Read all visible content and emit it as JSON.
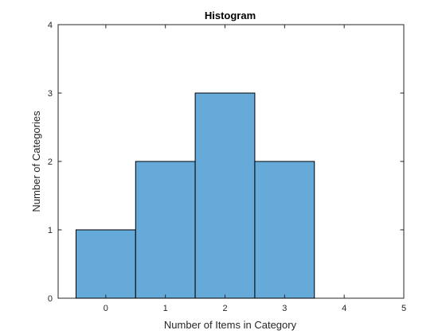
{
  "chart_data": {
    "type": "bar",
    "title": "Histogram",
    "xlabel": "Number of Items in Category",
    "ylabel": "Number of Categories",
    "bins": [
      {
        "x": 0,
        "count": 1
      },
      {
        "x": 1,
        "count": 2
      },
      {
        "x": 2,
        "count": 3
      },
      {
        "x": 3,
        "count": 2
      }
    ],
    "bin_width": 1,
    "xlim": [
      -0.8,
      5
    ],
    "ylim": [
      0,
      4
    ],
    "xticks": [
      0,
      1,
      2,
      3,
      4,
      5
    ],
    "yticks": [
      0,
      1,
      2,
      3,
      4
    ],
    "grid": false,
    "bar_color": "#66AADA",
    "edge_color": "#000000"
  }
}
